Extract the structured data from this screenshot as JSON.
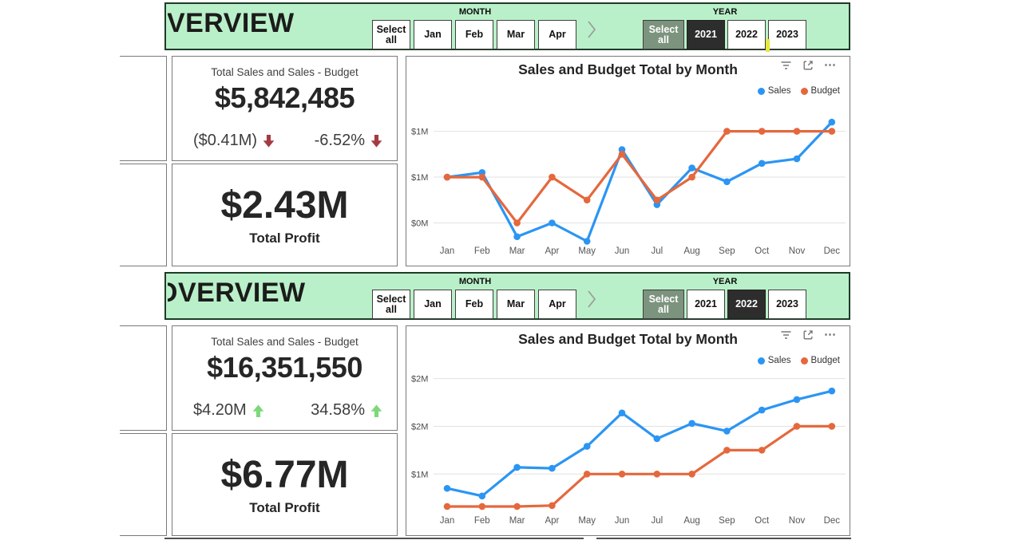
{
  "colors": {
    "header_bg": "#BAF0C9",
    "header_border": "#1E3B28",
    "card_border": "#7A7A7A",
    "sales": "#2B95F3",
    "budget": "#E5683D",
    "down_arrow": "#A53A42",
    "up_arrow": "#7DD87A",
    "selected_filter_bg": "#2D2D2D",
    "year_select_all_bg": "#7C937E",
    "cursor_artifact": "#E5E93B",
    "gridline": "#E2E2E2",
    "axis_text": "#4A4A4A"
  },
  "icons": {
    "more_options_glyph": "⋯"
  },
  "dashboards": [
    {
      "title": "OVERVIEW",
      "month_slicer": {
        "label": "MONTH",
        "select_all_label": "Select all",
        "visible_months": [
          "Jan",
          "Feb",
          "Mar",
          "Apr"
        ]
      },
      "year_slicer": {
        "label": "YEAR",
        "select_all_label": "Select all",
        "years": [
          "2021",
          "2022",
          "2023"
        ],
        "selected_year": "2021"
      },
      "sales_kpi": {
        "title": "Total Sales and Sales - Budget",
        "value": "$5,842,485",
        "delta_amount": "($0.41M)",
        "delta_percent": "-6.52%",
        "trend": "down"
      },
      "profit_kpi": {
        "value": "$2.43M",
        "label": "Total Profit"
      },
      "chart_data": {
        "type": "line",
        "title": "Sales and Budget Total by Month",
        "categories": [
          "Jan",
          "Feb",
          "Mar",
          "Apr",
          "May",
          "Jun",
          "Jul",
          "Aug",
          "Sep",
          "Oct",
          "Nov",
          "Dec"
        ],
        "series": [
          {
            "name": "Sales",
            "color_key": "sales",
            "values": [
              0.5,
              0.51,
              0.37,
              0.4,
              0.36,
              0.56,
              0.44,
              0.52,
              0.49,
              0.53,
              0.54,
              0.62
            ]
          },
          {
            "name": "Budget",
            "color_key": "budget",
            "values": [
              0.5,
              0.5,
              0.4,
              0.5,
              0.45,
              0.55,
              0.45,
              0.5,
              0.6,
              0.6,
              0.6,
              0.6
            ]
          }
        ],
        "y_gridlines": [
          {
            "label": "$1M",
            "value": 0.6
          },
          {
            "label": "$1M",
            "value": 0.5
          },
          {
            "label": "$0M",
            "value": 0.4
          }
        ],
        "ylim": [
          0.38,
          0.655
        ],
        "value_units": "$ millions",
        "grid": true,
        "legend_position": "top-right"
      }
    },
    {
      "title": "OVERVIEW",
      "month_slicer": {
        "label": "MONTH",
        "select_all_label": "Select all",
        "visible_months": [
          "Jan",
          "Feb",
          "Mar",
          "Apr"
        ]
      },
      "year_slicer": {
        "label": "YEAR",
        "select_all_label": "Select all",
        "years": [
          "2021",
          "2022",
          "2023"
        ],
        "selected_year": "2022"
      },
      "sales_kpi": {
        "title": "Total Sales and Sales - Budget",
        "value": "$16,351,550",
        "delta_amount": "$4.20M",
        "delta_percent": "34.58%",
        "trend": "up"
      },
      "profit_kpi": {
        "value": "$6.77M",
        "label": "Total Profit"
      },
      "chart_data": {
        "type": "line",
        "title": "Sales and Budget Total by Month",
        "categories": [
          "Jan",
          "Feb",
          "Mar",
          "Apr",
          "May",
          "Jun",
          "Jul",
          "Aug",
          "Sep",
          "Oct",
          "Nov",
          "Dec"
        ],
        "series": [
          {
            "name": "Sales",
            "color_key": "sales",
            "values": [
              0.85,
              0.77,
              1.07,
              1.06,
              1.29,
              1.64,
              1.37,
              1.53,
              1.45,
              1.67,
              1.78,
              1.87
            ]
          },
          {
            "name": "Budget",
            "color_key": "budget",
            "values": [
              0.66,
              0.66,
              0.66,
              0.67,
              1.0,
              1.0,
              1.0,
              1.0,
              1.25,
              1.25,
              1.5,
              1.5
            ]
          }
        ],
        "y_gridlines": [
          {
            "label": "$2M",
            "value": 2.0
          },
          {
            "label": "$2M",
            "value": 1.5
          },
          {
            "label": "$1M",
            "value": 1.0
          }
        ],
        "ylim": [
          0.71,
          2.03
        ],
        "value_units": "$ millions",
        "grid": true,
        "legend_position": "top-right"
      }
    }
  ]
}
